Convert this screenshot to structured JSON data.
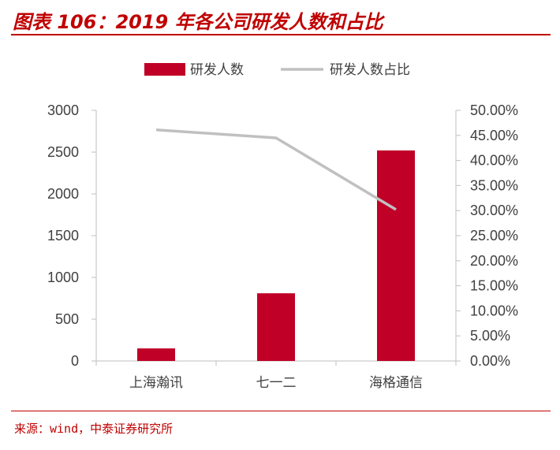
{
  "figure_title": "图表 106：2019 年各公司研发人数和占比",
  "source": "来源：wind，中泰证券研究所",
  "colors": {
    "bar": "#c00026",
    "line": "#c0c0c0",
    "accent": "#c00000",
    "axis": "#bfbfbf",
    "text": "#404040"
  },
  "chart_data": {
    "type": "bar",
    "title": "",
    "categories": [
      "上海瀚讯",
      "七一二",
      "海格通信"
    ],
    "series": [
      {
        "name": "研发人数",
        "type": "bar",
        "axis": "left",
        "values": [
          150,
          810,
          2520
        ]
      },
      {
        "name": "研发人数占比",
        "type": "line",
        "axis": "right",
        "values": [
          0.461,
          0.445,
          0.302
        ]
      }
    ],
    "y_left": {
      "ylim": [
        0,
        3000
      ],
      "ticks": [
        "0",
        "500",
        "1000",
        "1500",
        "2000",
        "2500",
        "3000"
      ]
    },
    "y_right": {
      "ylim": [
        0,
        0.5
      ],
      "ticks": [
        "0.00%",
        "5.00%",
        "10.00%",
        "15.00%",
        "20.00%",
        "25.00%",
        "30.00%",
        "35.00%",
        "40.00%",
        "45.00%",
        "50.00%"
      ]
    },
    "legend_position": "top-center",
    "grid": false
  }
}
